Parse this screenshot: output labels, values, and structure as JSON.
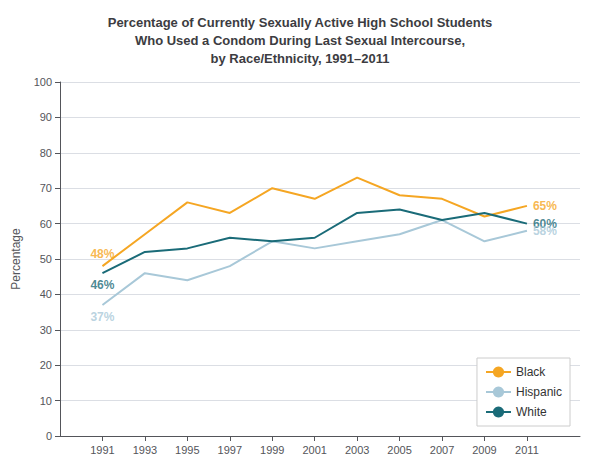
{
  "chart_data": {
    "type": "line",
    "title": "Percentage of Currently Sexually Active High School Students\nWho Used a Condom During Last Sexual Intercourse,\nby Race/Ethnicity, 1991–2011",
    "y_label": "Percentage",
    "x": [
      1991,
      1993,
      1995,
      1997,
      1999,
      2001,
      2003,
      2005,
      2007,
      2009,
      2011
    ],
    "series": [
      {
        "name": "Black",
        "color": "#f5a623",
        "values": [
          48,
          57,
          66,
          63,
          70,
          67,
          73,
          68,
          67,
          62,
          65
        ]
      },
      {
        "name": "Hispanic",
        "color": "#a8c8d8",
        "values": [
          37,
          46,
          44,
          48,
          55,
          53,
          55,
          57,
          61,
          55,
          58
        ]
      },
      {
        "name": "White",
        "color": "#1a6b78",
        "values": [
          46,
          52,
          53,
          56,
          55,
          56,
          63,
          64,
          61,
          63,
          60
        ]
      }
    ],
    "annotations": [
      {
        "text": "48%",
        "x": 1991,
        "y": 48,
        "series": "Black"
      },
      {
        "text": "46%",
        "x": 1991,
        "y": 46,
        "series": "White"
      },
      {
        "text": "37%",
        "x": 1991,
        "y": 37,
        "series": "Hispanic"
      },
      {
        "text": "65%",
        "x": 2011,
        "y": 65,
        "series": "Black"
      },
      {
        "text": "60%",
        "x": 2011,
        "y": 60,
        "series": "White"
      },
      {
        "text": "58%",
        "x": 2011,
        "y": 58,
        "series": "Hispanic"
      }
    ],
    "xlim": [
      1989,
      2013.5
    ],
    "xticks": [
      1991,
      1993,
      1995,
      1997,
      1999,
      2001,
      2003,
      2005,
      2007,
      2009,
      2011
    ],
    "ylim": [
      0,
      100
    ],
    "yticks": [
      0,
      10,
      20,
      30,
      40,
      50,
      60,
      70,
      80,
      90,
      100
    ],
    "grid": true,
    "legend": "lower right"
  }
}
